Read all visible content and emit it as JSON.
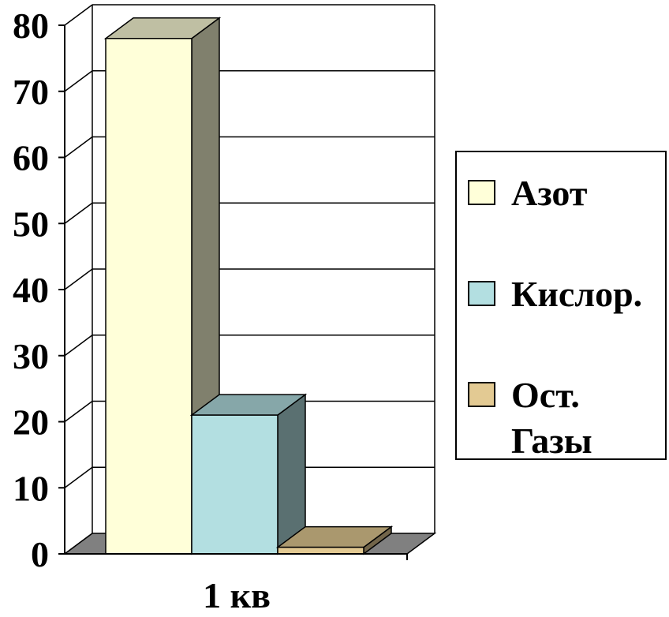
{
  "chart_data": {
    "type": "bar",
    "categories": [
      "1 кв"
    ],
    "series": [
      {
        "name": "Азот",
        "values": [
          78
        ],
        "color": "#FFFFD9"
      },
      {
        "name": "Кислор.",
        "values": [
          21
        ],
        "color": "#B3DFE1"
      },
      {
        "name": "Ост. Газы",
        "values": [
          1
        ],
        "color": "#E3CA93"
      }
    ],
    "ylim": [
      0,
      80
    ],
    "yticks": [
      0,
      10,
      20,
      30,
      40,
      50,
      60,
      70,
      80
    ],
    "grid": true,
    "legend": "right",
    "style": "3d"
  }
}
